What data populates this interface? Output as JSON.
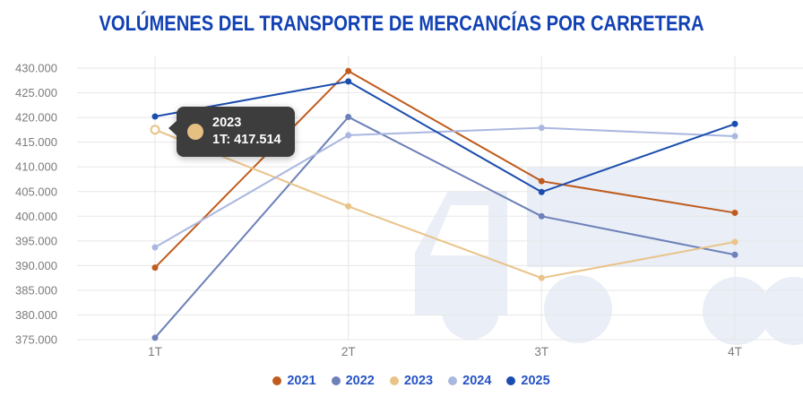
{
  "chart_data": {
    "type": "line",
    "title": "VOLÚMENES DEL TRANSPORTE DE MERCANCÍAS POR CARRETERA",
    "categories": [
      "1T",
      "2T",
      "3T",
      "4T"
    ],
    "series": [
      {
        "name": "2021",
        "color": "#bf5b1d",
        "values": [
          389600,
          429400,
          407100,
          400700
        ]
      },
      {
        "name": "2022",
        "color": "#6d81b8",
        "values": [
          375400,
          420100,
          400000,
          392200
        ]
      },
      {
        "name": "2023",
        "color": "#e9c388",
        "values": [
          417514,
          402000,
          387500,
          394800
        ]
      },
      {
        "name": "2024",
        "color": "#aab7e0",
        "values": [
          393700,
          416400,
          417900,
          416200
        ]
      },
      {
        "name": "2025",
        "color": "#1b4dae",
        "values": [
          420200,
          427300,
          404900,
          418700
        ]
      }
    ],
    "ylim": [
      375000,
      430000
    ],
    "ytick_step": 5000,
    "ytick_labels": [
      "430.000",
      "425.000",
      "420.000",
      "415.000",
      "410.000",
      "405.000",
      "400.000",
      "395.000",
      "390.000",
      "385.000",
      "380.000",
      "375.000"
    ],
    "ytick_values": [
      430000,
      425000,
      420000,
      415000,
      410000,
      405000,
      400000,
      395000,
      390000,
      385000,
      380000,
      375000
    ],
    "grid": true,
    "legend_position": "bottom",
    "highlight": {
      "series": "2023",
      "category": "1T"
    }
  },
  "tooltip": {
    "series": "2023",
    "title": "2023",
    "value_line": "1T: 417.514",
    "color": "#e6c083",
    "background": "#3d3d3d"
  },
  "colors": {
    "title_text": "#1141b4",
    "legend_text": "#2553c4",
    "axis_text": "#7b7b7b",
    "gridline": "#e7e7e7",
    "watermark": "#e9eef7",
    "background": "#ffffff"
  },
  "icons": {
    "watermark": "truck"
  }
}
